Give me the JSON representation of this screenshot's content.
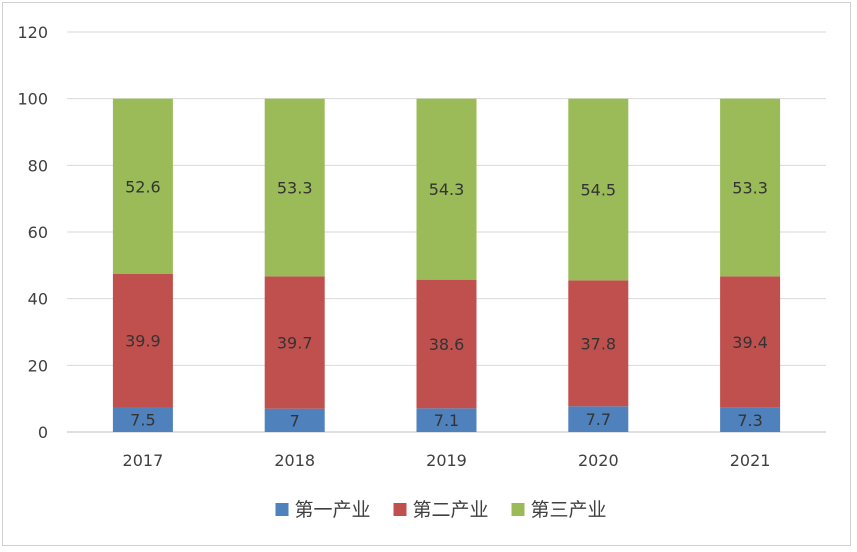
{
  "chart_data": {
    "type": "bar",
    "stacked": true,
    "categories": [
      "2017",
      "2018",
      "2019",
      "2020",
      "2021"
    ],
    "series": [
      {
        "name": "第一产业",
        "color": "#4f81bd",
        "values": [
          7.5,
          7,
          7.1,
          7.7,
          7.3
        ]
      },
      {
        "name": "第二产业",
        "color": "#c0504d",
        "values": [
          39.9,
          39.7,
          38.6,
          37.8,
          39.4
        ]
      },
      {
        "name": "第三产业",
        "color": "#9bbb59",
        "values": [
          52.6,
          53.3,
          54.3,
          54.5,
          53.3
        ]
      }
    ],
    "ylim": [
      0,
      120
    ],
    "yticks": [
      0,
      20,
      40,
      60,
      80,
      100,
      120
    ],
    "grid": true,
    "legend": "bottom",
    "title": "",
    "xlabel": "",
    "ylabel": ""
  }
}
